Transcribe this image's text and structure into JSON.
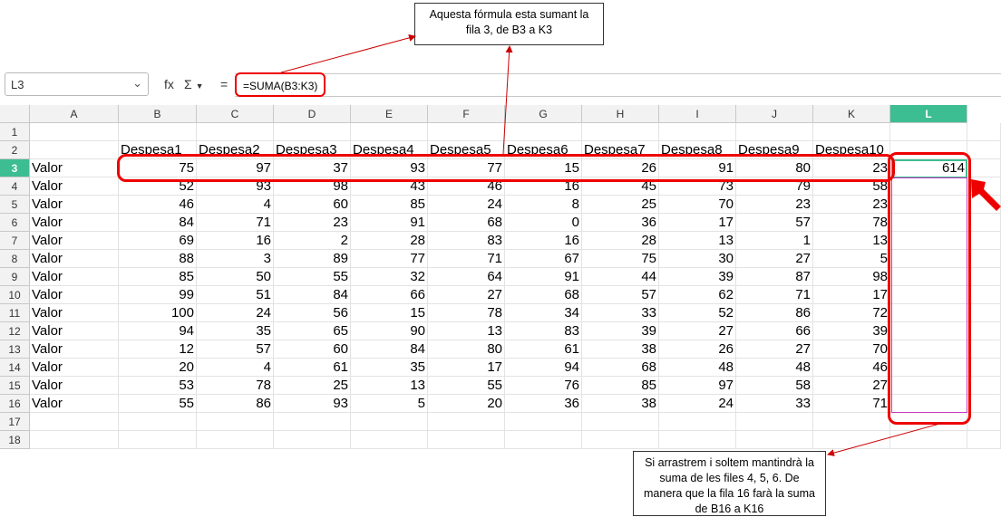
{
  "toolbar": {
    "name_box": "L3",
    "formula": "=SUMA(B3:K3)",
    "function_wizard_glyph": "fx",
    "sum_glyph": "Σ",
    "equals_glyph": "="
  },
  "columns": [
    "A",
    "B",
    "C",
    "D",
    "E",
    "F",
    "G",
    "H",
    "I",
    "J",
    "K",
    "L"
  ],
  "selected_column": "L",
  "rows": [
    "1",
    "2",
    "3",
    "4",
    "5",
    "6",
    "7",
    "8",
    "9",
    "10",
    "11",
    "12",
    "13",
    "14",
    "15",
    "16",
    "17",
    "18"
  ],
  "selected_row": "3",
  "header_row": [
    "Despesa1",
    "Despesa2",
    "Despesa3",
    "Despesa4",
    "Despesa5",
    "Despesa6",
    "Despesa7",
    "Despesa8",
    "Despesa9",
    "Despesa10"
  ],
  "row_label": "Valor",
  "data_rows": [
    {
      "row": "3",
      "values": [
        "75",
        "97",
        "37",
        "93",
        "77",
        "15",
        "26",
        "91",
        "80",
        "23"
      ],
      "total": "614"
    },
    {
      "row": "4",
      "values": [
        "52",
        "93",
        "98",
        "43",
        "46",
        "16",
        "45",
        "73",
        "79",
        "58"
      ],
      "total": ""
    },
    {
      "row": "5",
      "values": [
        "46",
        "4",
        "60",
        "85",
        "24",
        "8",
        "25",
        "70",
        "23",
        "23"
      ],
      "total": ""
    },
    {
      "row": "6",
      "values": [
        "84",
        "71",
        "23",
        "91",
        "68",
        "0",
        "36",
        "17",
        "57",
        "78"
      ],
      "total": ""
    },
    {
      "row": "7",
      "values": [
        "69",
        "16",
        "2",
        "28",
        "83",
        "16",
        "28",
        "13",
        "1",
        "13"
      ],
      "total": ""
    },
    {
      "row": "8",
      "values": [
        "88",
        "3",
        "89",
        "77",
        "71",
        "67",
        "75",
        "30",
        "27",
        "5"
      ],
      "total": ""
    },
    {
      "row": "9",
      "values": [
        "85",
        "50",
        "55",
        "32",
        "64",
        "91",
        "44",
        "39",
        "87",
        "98"
      ],
      "total": ""
    },
    {
      "row": "10",
      "values": [
        "99",
        "51",
        "84",
        "66",
        "27",
        "68",
        "57",
        "62",
        "71",
        "17"
      ],
      "total": ""
    },
    {
      "row": "11",
      "values": [
        "100",
        "24",
        "56",
        "15",
        "78",
        "34",
        "33",
        "52",
        "86",
        "72"
      ],
      "total": ""
    },
    {
      "row": "12",
      "values": [
        "94",
        "35",
        "65",
        "90",
        "13",
        "83",
        "39",
        "27",
        "66",
        "39"
      ],
      "total": ""
    },
    {
      "row": "13",
      "values": [
        "12",
        "57",
        "60",
        "84",
        "80",
        "61",
        "38",
        "26",
        "27",
        "70"
      ],
      "total": ""
    },
    {
      "row": "14",
      "values": [
        "20",
        "4",
        "61",
        "35",
        "17",
        "94",
        "68",
        "48",
        "48",
        "46"
      ],
      "total": ""
    },
    {
      "row": "15",
      "values": [
        "53",
        "78",
        "25",
        "13",
        "55",
        "76",
        "85",
        "97",
        "58",
        "27"
      ],
      "total": ""
    },
    {
      "row": "16",
      "values": [
        "55",
        "86",
        "93",
        "5",
        "20",
        "36",
        "38",
        "24",
        "33",
        "71"
      ],
      "total": ""
    }
  ],
  "annotations": {
    "top_callout": "Aquesta fórmula esta sumant la fila 3, de B3 a K3",
    "bottom_callout": "Si arrastrem i soltem mantindrà la suma de les files 4, 5, 6. De manera que la fila 16 farà la suma de B16 a K16"
  },
  "colors": {
    "selection_accent": "#3dbd92",
    "annotation_red": "#e00000",
    "fill_range": "#c23ac2"
  }
}
